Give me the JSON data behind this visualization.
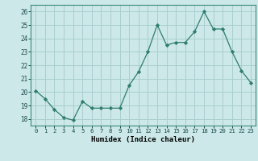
{
  "x": [
    0,
    1,
    2,
    3,
    4,
    5,
    6,
    7,
    8,
    9,
    10,
    11,
    12,
    13,
    14,
    15,
    16,
    17,
    18,
    19,
    20,
    21,
    22,
    23
  ],
  "y": [
    20.1,
    19.5,
    18.7,
    18.1,
    17.9,
    19.3,
    18.8,
    18.8,
    18.8,
    18.8,
    20.5,
    21.5,
    23.0,
    25.0,
    23.5,
    23.7,
    23.7,
    24.5,
    26.0,
    24.7,
    24.7,
    23.0,
    21.6,
    20.7
  ],
  "xlabel": "Humidex (Indice chaleur)",
  "line_color": "#2e7d6e",
  "marker_color": "#2e7d6e",
  "bg_color": "#cce8e8",
  "grid_color": "#aacece",
  "ylim": [
    17.5,
    26.5
  ],
  "xlim": [
    -0.5,
    23.5
  ],
  "yticks": [
    18,
    19,
    20,
    21,
    22,
    23,
    24,
    25,
    26
  ],
  "xticks": [
    0,
    1,
    2,
    3,
    4,
    5,
    6,
    7,
    8,
    9,
    10,
    11,
    12,
    13,
    14,
    15,
    16,
    17,
    18,
    19,
    20,
    21,
    22,
    23
  ]
}
